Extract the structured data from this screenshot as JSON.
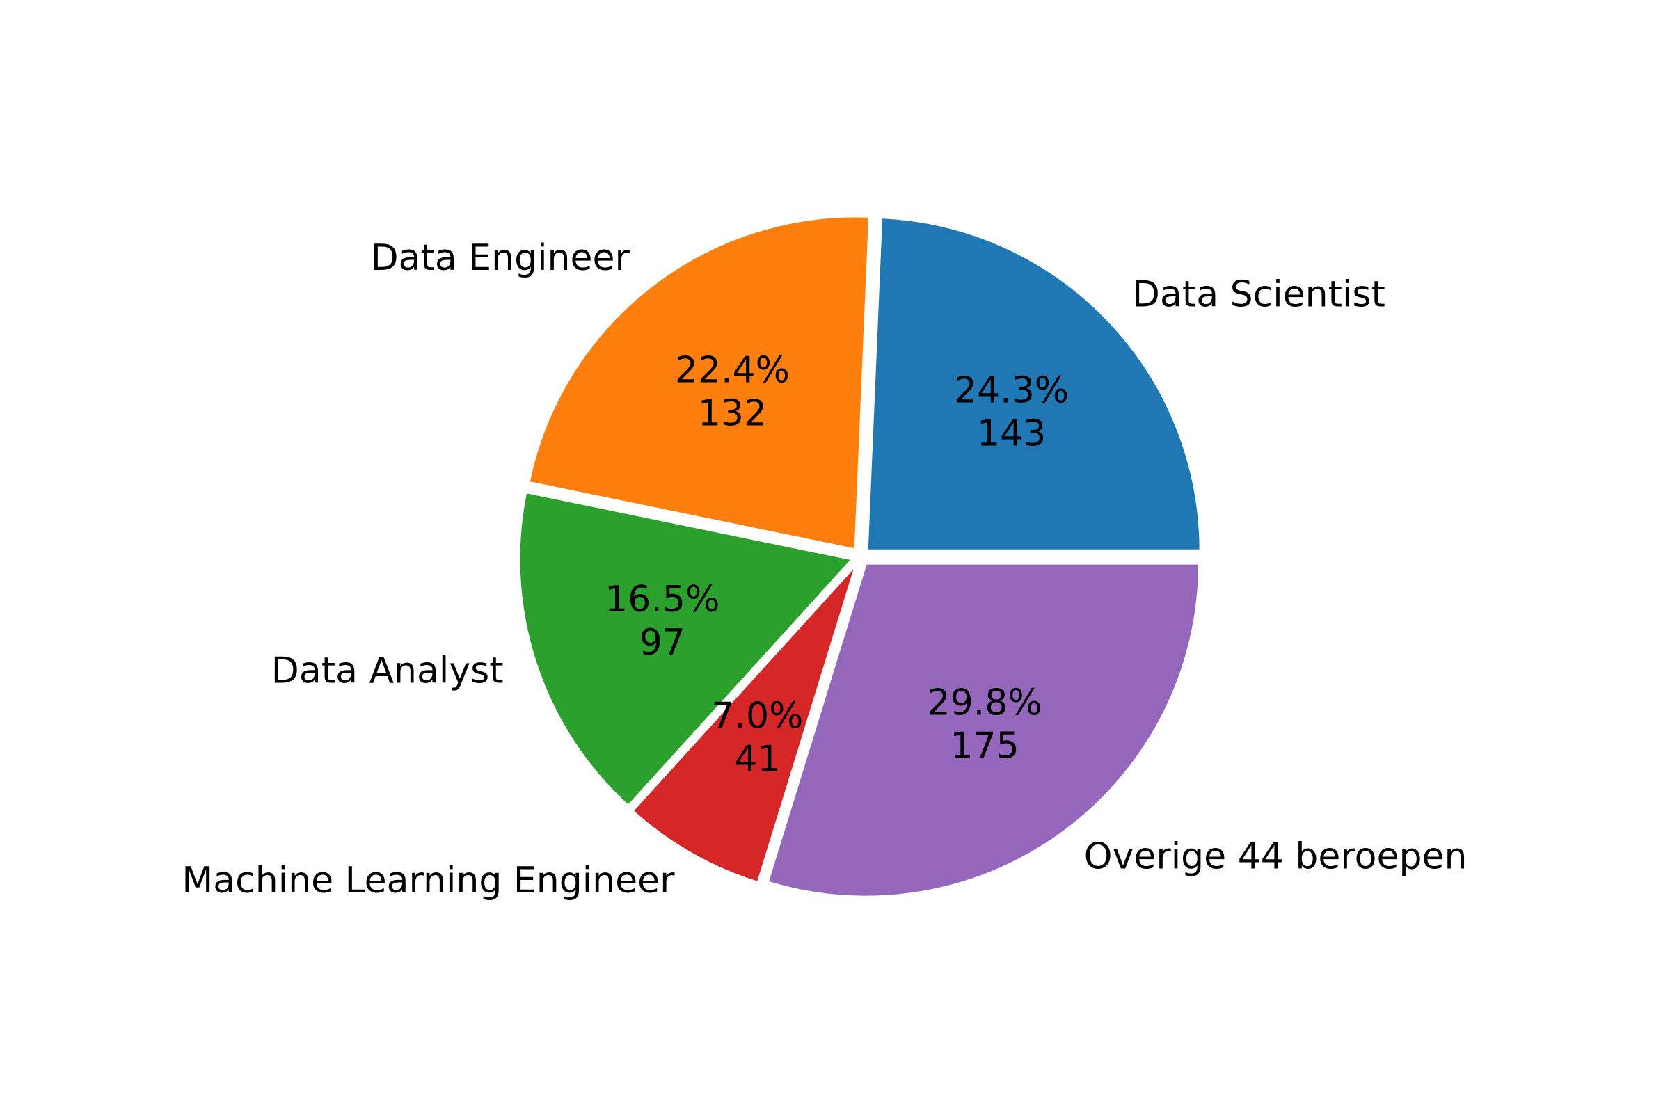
{
  "chart_data": {
    "type": "pie",
    "title": "",
    "slices": [
      {
        "label": "Data Scientist",
        "value": 143,
        "percent_label": "24.3%",
        "color": "#1f77b4"
      },
      {
        "label": "Data Engineer",
        "value": 132,
        "percent_label": "22.4%",
        "color": "#ff7f0e"
      },
      {
        "label": "Data Analyst",
        "value": 97,
        "percent_label": "16.5%",
        "color": "#2ca02c"
      },
      {
        "label": "Machine Learning Engineer",
        "value": 41,
        "percent_label": "7.0%",
        "color": "#d62728"
      },
      {
        "label": "Overige 44 beroepen",
        "value": 175,
        "percent_label": "29.8%",
        "color": "#9467bd"
      }
    ],
    "start_angle_deg": 0,
    "direction": "counterclockwise",
    "exploded": true,
    "legend": "none"
  }
}
